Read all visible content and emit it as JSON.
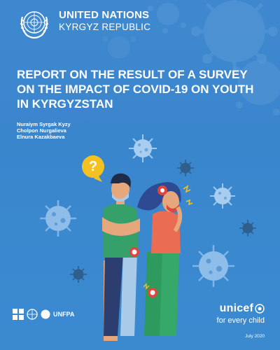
{
  "header": {
    "org_name": "UNITED NATIONS",
    "org_sub": "KYRGYZ REPUBLIC",
    "logo_icon": "un-emblem-icon"
  },
  "title": "REPORT ON THE RESULT OF A SURVEY ON THE IMPACT OF COVID-19 ON YOUTH IN KYRGYZSTAN",
  "authors": [
    "Nuraiym Syrgak Kyzy",
    "Cholpon Nurgalieva",
    "Elnura Kazakbaeva"
  ],
  "illustration": {
    "question_mark": "?",
    "icons": [
      "virus-icon",
      "question-bubble-icon",
      "alert-icon",
      "young-man-figure",
      "young-woman-figure"
    ]
  },
  "logos": {
    "unfpa": "UNFPA",
    "unicef_word": "unicef",
    "unicef_tagline": "for every child"
  },
  "date": "July 2020",
  "colors": {
    "background": "#3d88ce",
    "virus": "#5b9fdb",
    "accent_yellow": "#f3c222",
    "accent_red": "#e2453b"
  }
}
